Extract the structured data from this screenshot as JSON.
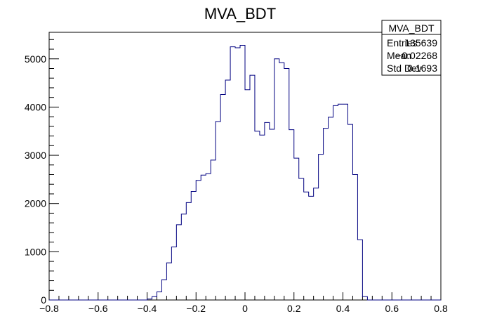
{
  "chart_data": {
    "type": "histogram",
    "title": "MVA_BDT",
    "xlabel": "",
    "ylabel": "",
    "xlim": [
      -0.8,
      0.8
    ],
    "ylim": [
      0,
      5550
    ],
    "grid": false,
    "line_color": "#000080",
    "bin_width": 0.02,
    "xticks": [
      "−0.8",
      "−0.6",
      "−0.4",
      "−0.2",
      "0",
      "0.2",
      "0.4",
      "0.6",
      "0.8"
    ],
    "xtick_values": [
      -0.8,
      -0.6,
      -0.4,
      -0.2,
      0,
      0.2,
      0.4,
      0.6,
      0.8
    ],
    "yticks": [
      "0",
      "1000",
      "2000",
      "3000",
      "4000",
      "5000"
    ],
    "ytick_values": [
      0,
      1000,
      2000,
      3000,
      4000,
      5000
    ],
    "bin_edges_start": -0.8,
    "counts": [
      0,
      0,
      0,
      0,
      0,
      0,
      0,
      0,
      0,
      0,
      0,
      0,
      0,
      0,
      0,
      0,
      0,
      0,
      0,
      0,
      20,
      70,
      170,
      420,
      770,
      1100,
      1560,
      1780,
      2020,
      2250,
      2480,
      2590,
      2620,
      2900,
      3700,
      4260,
      4560,
      5250,
      5230,
      5280,
      4360,
      4660,
      3500,
      3420,
      3680,
      3540,
      5000,
      4920,
      4800,
      3530,
      2940,
      2520,
      2240,
      2150,
      2320,
      3020,
      3560,
      3790,
      4030,
      4060,
      4060,
      3640,
      2600,
      1250,
      70,
      0,
      0,
      0,
      0,
      0,
      0,
      0,
      0,
      0,
      0,
      0,
      0,
      0,
      0,
      0
    ],
    "stats": {
      "title": "MVA_BDT",
      "rows": [
        {
          "label": "Entries",
          "value": "135639"
        },
        {
          "label": "Mean",
          "value": "−0.02268"
        },
        {
          "label": "Std Dev",
          "value": "0.1693"
        }
      ]
    }
  }
}
